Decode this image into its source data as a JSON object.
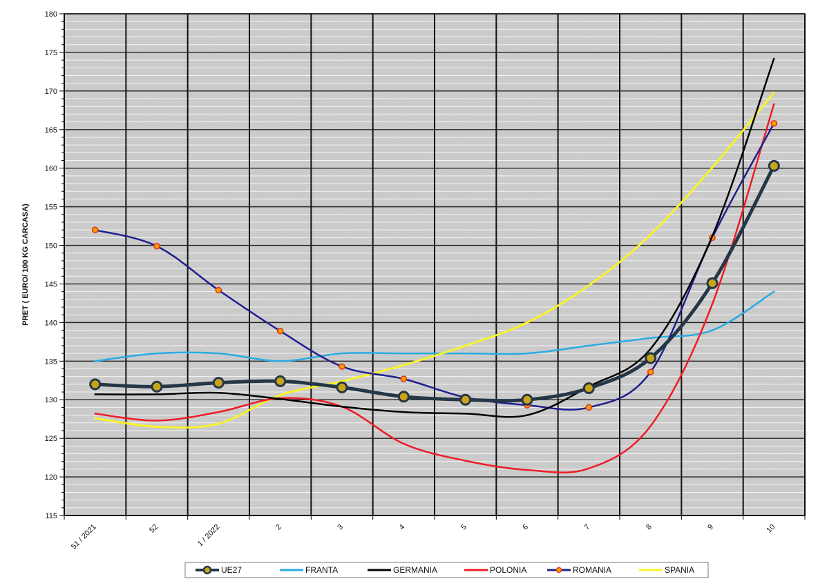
{
  "chart_data": {
    "type": "line",
    "title": "",
    "xlabel": "",
    "ylabel": "PRET ( EURO/ 100 KG CARCASA)",
    "categories": [
      "51 / 2021",
      "52",
      "1 / 2022",
      "2",
      "3",
      "4",
      "5",
      "6",
      "7",
      "8",
      "9",
      "10"
    ],
    "ylim": [
      115,
      180
    ],
    "ytick_step": 5,
    "grid": true,
    "legend_position": "bottom",
    "series": [
      {
        "name": "UE27",
        "color": "#253746",
        "values": [
          132.0,
          131.7,
          132.2,
          132.4,
          131.6,
          130.4,
          130.0,
          130.0,
          131.5,
          135.4,
          145.1,
          160.3
        ]
      },
      {
        "name": "FRANTA",
        "color": "#29abe2",
        "values": [
          135.0,
          136.0,
          136.0,
          135.0,
          136.0,
          136.0,
          136.0,
          136.0,
          137.0,
          138.0,
          139.0,
          144.0
        ]
      },
      {
        "name": "GERMANIA",
        "color": "#000000",
        "values": [
          130.7,
          130.7,
          130.9,
          130.1,
          129.1,
          128.4,
          128.2,
          128.0,
          131.7,
          136.6,
          151.2,
          174.2
        ]
      },
      {
        "name": "POLONIA",
        "color": "#ee1c25",
        "values": [
          128.2,
          127.3,
          128.4,
          130.2,
          129.1,
          124.3,
          122.1,
          120.9,
          121.1,
          126.6,
          142.4,
          168.3
        ]
      },
      {
        "name": "ROMANIA",
        "color": "#1f1f8f",
        "values": [
          152.0,
          149.9,
          144.2,
          138.9,
          134.3,
          132.7,
          130.3,
          129.3,
          129.0,
          133.6,
          151.0,
          165.8
        ]
      },
      {
        "name": "SPANIA",
        "color": "#f7f32a",
        "values": [
          127.6,
          126.5,
          126.9,
          130.6,
          132.4,
          134.5,
          137.0,
          140.0,
          144.8,
          151.4,
          160.1,
          169.8
        ]
      }
    ]
  }
}
